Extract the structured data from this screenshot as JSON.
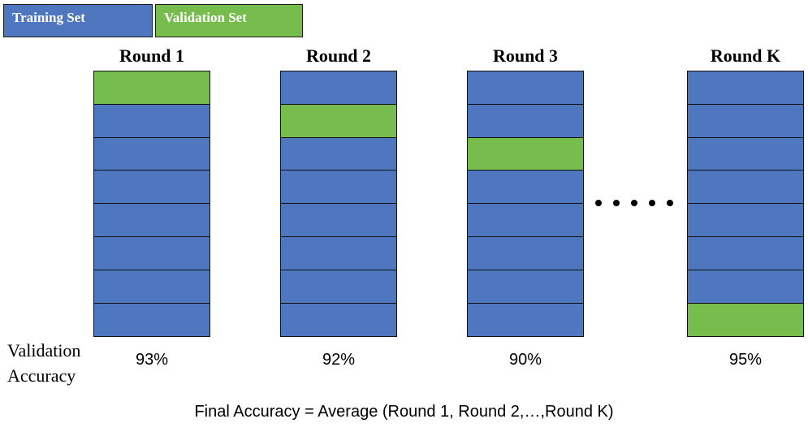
{
  "legend": {
    "training_label": "Training Set",
    "validation_label": "Validation Set",
    "training_color": "#4f77bf",
    "validation_color": "#76bd4d"
  },
  "rounds": [
    {
      "title": "Round 1",
      "folds": [
        "val",
        "train",
        "train",
        "train",
        "train",
        "train",
        "train",
        "train"
      ],
      "accuracy": "93%"
    },
    {
      "title": "Round 2",
      "folds": [
        "train",
        "val",
        "train",
        "train",
        "train",
        "train",
        "train",
        "train"
      ],
      "accuracy": "92%"
    },
    {
      "title": "Round 3",
      "folds": [
        "train",
        "train",
        "val",
        "train",
        "train",
        "train",
        "train",
        "train"
      ],
      "accuracy": "90%"
    },
    {
      "title": "Round K",
      "folds": [
        "train",
        "train",
        "train",
        "train",
        "train",
        "train",
        "train",
        "val"
      ],
      "accuracy": "95%"
    }
  ],
  "validation_accuracy_label": {
    "line1": "Validation",
    "line2": "Accuracy"
  },
  "ellipsis_dots": 5,
  "formula": "Final Accuracy = Average (Round 1, Round 2,…,Round K)"
}
